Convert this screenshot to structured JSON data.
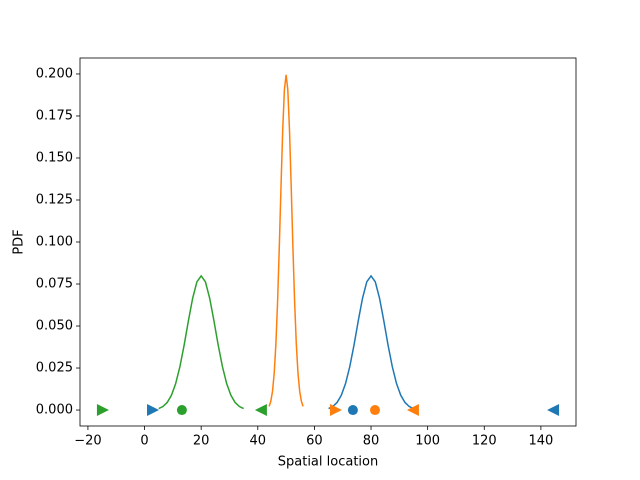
{
  "chart_data": {
    "type": "line",
    "xlabel": "Spatial location",
    "ylabel": "PDF",
    "xlim": [
      -22.8,
      152.4
    ],
    "ylim": [
      -0.0095,
      0.2095
    ],
    "xticks": [
      {
        "value": -20,
        "label": "−20"
      },
      0,
      20,
      40,
      60,
      80,
      100,
      120,
      140
    ],
    "yticks": [
      {
        "value": 0,
        "label": "0.000"
      },
      {
        "value": 0.025,
        "label": "0.025"
      },
      {
        "value": 0.05,
        "label": "0.050"
      },
      {
        "value": 0.075,
        "label": "0.075"
      },
      {
        "value": 0.1,
        "label": "0.100"
      },
      {
        "value": 0.125,
        "label": "0.125"
      },
      {
        "value": 0.15,
        "label": "0.150"
      },
      {
        "value": 0.175,
        "label": "0.175"
      },
      {
        "value": 0.2,
        "label": "0.200"
      }
    ],
    "series": [
      {
        "color": "#1f77b4",
        "x": [
          65,
          66.5,
          68,
          69.5,
          71,
          72.5,
          74,
          75.5,
          77,
          78.5,
          80,
          81.5,
          83,
          84.5,
          86,
          87.5,
          89,
          90.5,
          92,
          93.5,
          95
        ],
        "values": [
          0.0009,
          0.0021,
          0.0045,
          0.0088,
          0.0158,
          0.0259,
          0.0388,
          0.0532,
          0.0666,
          0.0763,
          0.0798,
          0.0763,
          0.0666,
          0.0532,
          0.0388,
          0.0259,
          0.0158,
          0.0088,
          0.0045,
          0.0021,
          0.0009
        ]
      },
      {
        "color": "#ff7f0e",
        "x": [
          44,
          44.6,
          45.2,
          45.8,
          46.4,
          47,
          47.6,
          48.2,
          48.8,
          49.4,
          50,
          50.6,
          51.2,
          51.8,
          52.4,
          53,
          53.6,
          54.2,
          54.8,
          55.4,
          56
        ],
        "values": [
          0.0022,
          0.0052,
          0.0112,
          0.0219,
          0.0395,
          0.0648,
          0.0972,
          0.1331,
          0.1666,
          0.1907,
          0.1995,
          0.1907,
          0.1666,
          0.1331,
          0.0972,
          0.0648,
          0.0395,
          0.0219,
          0.0112,
          0.0052,
          0.0022
        ]
      },
      {
        "color": "#2ca02c",
        "x": [
          5,
          6.5,
          8,
          9.5,
          11,
          12.5,
          14,
          15.5,
          17,
          18.5,
          20,
          21.5,
          23,
          24.5,
          26,
          27.5,
          29,
          30.5,
          32,
          33.5,
          35
        ],
        "values": [
          0.0009,
          0.0021,
          0.0045,
          0.0088,
          0.0158,
          0.0259,
          0.0388,
          0.0532,
          0.0666,
          0.0763,
          0.0798,
          0.0763,
          0.0666,
          0.0532,
          0.0388,
          0.0259,
          0.0158,
          0.0088,
          0.0045,
          0.0021,
          0.0009
        ]
      }
    ],
    "markers": [
      {
        "color": "#1f77b4",
        "marker": "triangle-right",
        "x": [
          3
        ],
        "values": [
          0
        ]
      },
      {
        "color": "#1f77b4",
        "marker": "circle",
        "x": [
          73.6
        ],
        "values": [
          0
        ]
      },
      {
        "color": "#1f77b4",
        "marker": "triangle-left",
        "x": [
          144.3
        ],
        "values": [
          0
        ]
      },
      {
        "color": "#ff7f0e",
        "marker": "triangle-right",
        "x": [
          67.6
        ],
        "values": [
          0
        ]
      },
      {
        "color": "#ff7f0e",
        "marker": "circle",
        "x": [
          81.4
        ],
        "values": [
          0
        ]
      },
      {
        "color": "#ff7f0e",
        "marker": "triangle-left",
        "x": [
          94.8
        ],
        "values": [
          0
        ]
      },
      {
        "color": "#2ca02c",
        "marker": "triangle-right",
        "x": [
          -14.7
        ],
        "values": [
          0
        ]
      },
      {
        "color": "#2ca02c",
        "marker": "circle",
        "x": [
          13.2
        ],
        "values": [
          0
        ]
      },
      {
        "color": "#2ca02c",
        "marker": "triangle-left",
        "x": [
          41.1
        ],
        "values": [
          0
        ]
      }
    ]
  }
}
